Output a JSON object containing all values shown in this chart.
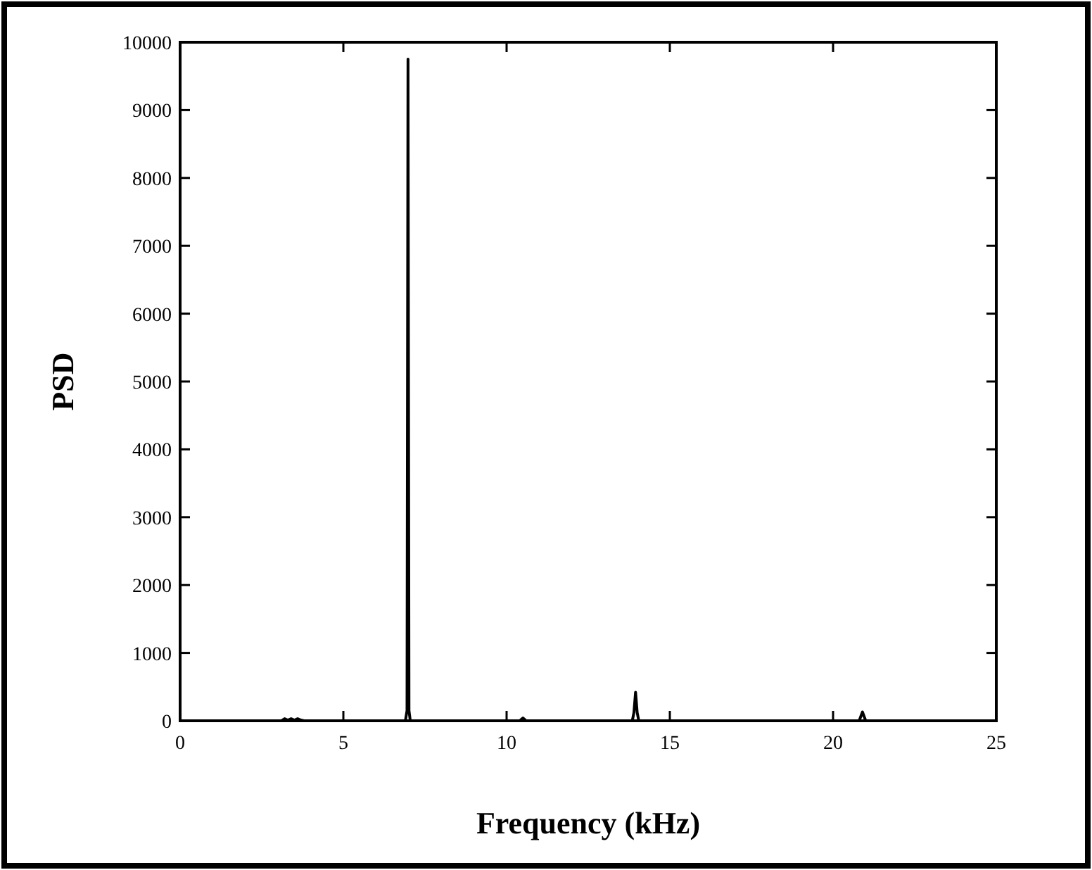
{
  "chart_data": {
    "type": "line",
    "xlabel": "Frequency (kHz)",
    "ylabel": "PSD",
    "x": [
      0,
      3.1,
      3.2,
      3.3,
      3.4,
      3.5,
      3.6,
      3.7,
      3.8,
      6.9,
      6.95,
      6.98,
      7.01,
      7.05,
      10.4,
      10.5,
      10.6,
      13.85,
      13.9,
      13.95,
      14.0,
      14.05,
      20.8,
      20.9,
      21.0,
      25
    ],
    "series": [
      {
        "color": "#000000",
        "values": [
          0,
          0,
          30,
          10,
          30,
          10,
          30,
          10,
          0,
          0,
          150,
          9750,
          150,
          0,
          0,
          40,
          0,
          0,
          120,
          420,
          120,
          0,
          0,
          130,
          0,
          0
        ]
      }
    ],
    "xlim": [
      0,
      25
    ],
    "xticks": [
      0,
      5,
      10,
      15,
      20,
      25
    ],
    "ylim": [
      0,
      10000
    ],
    "yticks": [
      0,
      1000,
      2000,
      3000,
      4000,
      5000,
      6000,
      7000,
      8000,
      9000,
      10000
    ],
    "marker": "none",
    "line_style": "solid"
  }
}
